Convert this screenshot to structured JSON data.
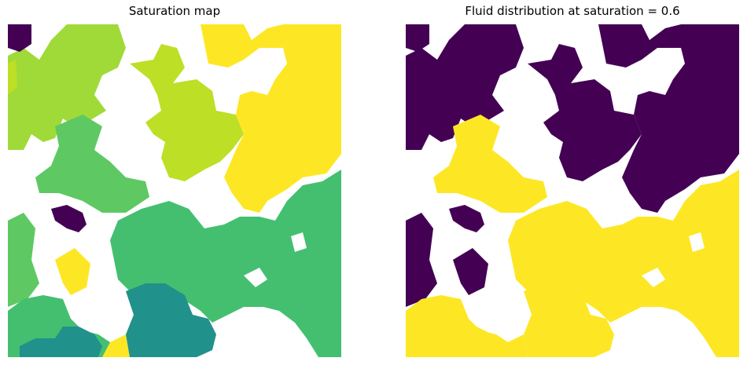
{
  "panels": [
    {
      "title": "Saturation map",
      "background": "#ffffff",
      "color_legend": {
        "dark_purple": "#440154",
        "teal": "#21918c",
        "mid_green": "#44bf70",
        "light_green": "#5ec962",
        "yellow_green": "#a0da39",
        "lime": "#bddf26",
        "yellow": "#fde725"
      }
    },
    {
      "title": "Fluid distribution at saturation = 0.6",
      "background": "#ffffff",
      "color_legend": {
        "filled": "#fde725",
        "unfilled": "#440154"
      }
    }
  ]
}
